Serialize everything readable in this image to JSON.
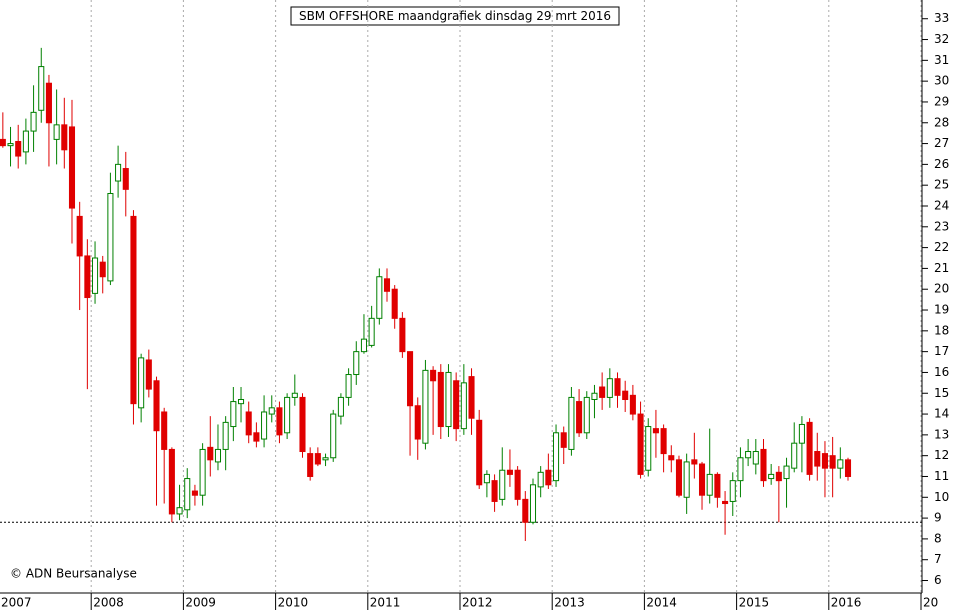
{
  "chart_data": {
    "type": "candlestick",
    "title": "SBM OFFSHORE maandgrafiek dinsdag 29 mrt 2016",
    "credit": "© ADN Beursanalyse",
    "categories": [
      null,
      null,
      null,
      null,
      null,
      null,
      null,
      null,
      null,
      null,
      null,
      null,
      null,
      null,
      null,
      null,
      null,
      null,
      null,
      null,
      null,
      null,
      null,
      null,
      null,
      null,
      null,
      null,
      null,
      null,
      null,
      null,
      null,
      null,
      null,
      null,
      null,
      null,
      null,
      null,
      null,
      null,
      null,
      null,
      null,
      null,
      null,
      null,
      null,
      null,
      null,
      null,
      null,
      null,
      null,
      null,
      null,
      null,
      null,
      null,
      null,
      null,
      null,
      null,
      null,
      null,
      null,
      null,
      null,
      null,
      null,
      null,
      null,
      null,
      null,
      null,
      null,
      null,
      null,
      null,
      null,
      null,
      null,
      null,
      null,
      null,
      null,
      null,
      null,
      null,
      null,
      null,
      null,
      null,
      null,
      null,
      null,
      null,
      null,
      null,
      null,
      null,
      null,
      null,
      null,
      null,
      null,
      null,
      null,
      null,
      null
    ],
    "open": [
      27.2,
      26.9,
      27.1,
      26.6,
      27.6,
      28.6,
      29.9,
      27.2,
      27.9,
      27.8,
      23.5,
      21.6,
      19.8,
      21.3,
      20.4,
      25.2,
      25.8,
      23.5,
      14.3,
      16.6,
      15.6,
      14.1,
      12.3,
      9.2,
      9.4,
      10.3,
      10.1,
      12.4,
      11.7,
      12.3,
      13.4,
      14.5,
      14.1,
      13.1,
      12.8,
      14.0,
      14.3,
      13.1,
      14.8,
      14.8,
      12.1,
      12.1,
      11.8,
      11.9,
      13.9,
      14.8,
      15.9,
      17.0,
      17.3,
      18.6,
      20.5,
      20.0,
      18.6,
      17.0,
      14.4,
      12.6,
      16.1,
      16.0,
      13.4,
      15.6,
      13.3,
      15.8,
      13.7,
      10.7,
      10.8,
      9.9,
      11.3,
      11.3,
      9.9,
      8.8,
      10.5,
      11.3,
      10.8,
      13.1,
      12.3,
      14.6,
      13.1,
      14.7,
      15.3,
      14.8,
      15.7,
      15.1,
      14.9,
      14.0,
      11.3,
      13.3,
      13.3,
      12.0,
      11.8,
      10.0,
      11.8,
      11.6,
      10.1,
      11.1,
      9.8,
      9.8,
      10.8,
      11.9,
      11.6,
      12.3,
      10.9,
      11.2,
      10.9,
      11.4,
      12.6,
      13.6,
      12.2,
      12.1,
      12.0,
      11.4,
      11.8
    ],
    "high": [
      28.5,
      27.8,
      27.9,
      28.2,
      29.8,
      31.6,
      30.3,
      29.6,
      29.2,
      29.1,
      24.2,
      22.4,
      22.3,
      21.6,
      25.6,
      26.9,
      26.6,
      23.8,
      16.9,
      17.1,
      15.8,
      14.3,
      12.4,
      10.6,
      11.4,
      10.6,
      12.6,
      13.9,
      13.5,
      13.9,
      15.3,
      15.3,
      14.6,
      13.6,
      14.9,
      14.9,
      14.6,
      15.0,
      15.9,
      15.0,
      12.4,
      12.4,
      12.1,
      14.2,
      15.0,
      16.2,
      17.5,
      18.8,
      19.2,
      21.0,
      21.0,
      20.2,
      18.9,
      17.0,
      14.8,
      16.6,
      16.3,
      16.4,
      16.4,
      16.0,
      16.4,
      16.2,
      14.2,
      11.3,
      11.1,
      12.4,
      12.3,
      11.5,
      10.3,
      10.9,
      11.5,
      12.1,
      13.5,
      13.4,
      15.3,
      15.2,
      15.1,
      15.4,
      16.0,
      16.2,
      16.0,
      15.6,
      15.4,
      14.6,
      13.8,
      14.2,
      13.5,
      12.5,
      12.0,
      12.1,
      13.1,
      11.7,
      13.3,
      11.2,
      10.3,
      11.2,
      12.4,
      12.8,
      12.8,
      12.8,
      11.6,
      11.5,
      11.9,
      13.6,
      13.9,
      13.8,
      13.1,
      12.7,
      12.9,
      12.4,
      11.9
    ],
    "low": [
      26.8,
      25.9,
      25.8,
      26.0,
      26.6,
      28.0,
      25.9,
      26.0,
      25.8,
      22.2,
      19.0,
      15.2,
      19.3,
      19.8,
      20.2,
      24.4,
      23.5,
      13.5,
      13.6,
      14.8,
      9.6,
      9.7,
      8.8,
      8.9,
      9.0,
      9.6,
      9.6,
      11.0,
      11.3,
      11.3,
      12.7,
      13.6,
      12.6,
      12.4,
      12.4,
      13.6,
      12.6,
      12.8,
      14.4,
      11.9,
      10.8,
      11.5,
      11.5,
      11.7,
      13.5,
      14.4,
      15.4,
      16.9,
      17.2,
      18.3,
      19.4,
      18.1,
      16.7,
      12.0,
      11.8,
      12.3,
      13.0,
      12.8,
      12.9,
      12.7,
      13.0,
      13.0,
      10.4,
      10.0,
      9.3,
      9.6,
      10.5,
      9.6,
      7.9,
      8.7,
      10.0,
      10.4,
      10.5,
      11.6,
      12.0,
      12.9,
      12.8,
      13.8,
      14.2,
      14.3,
      14.3,
      14.1,
      13.7,
      10.9,
      11.0,
      11.9,
      11.2,
      11.2,
      10.0,
      9.2,
      10.9,
      9.4,
      9.7,
      9.5,
      8.2,
      9.1,
      10.0,
      11.5,
      11.1,
      10.5,
      10.6,
      8.8,
      9.5,
      11.2,
      11.2,
      10.8,
      10.8,
      10.0,
      10.0,
      10.9,
      10.8
    ],
    "close": [
      26.9,
      27.0,
      26.4,
      27.6,
      28.5,
      30.7,
      28.0,
      27.9,
      26.7,
      23.9,
      21.6,
      19.6,
      21.5,
      20.6,
      24.6,
      26.0,
      24.8,
      14.5,
      16.7,
      15.2,
      13.2,
      12.3,
      9.2,
      9.5,
      10.9,
      10.1,
      12.3,
      11.8,
      12.3,
      13.6,
      14.6,
      14.7,
      13.0,
      12.7,
      14.1,
      14.3,
      13.0,
      14.8,
      15.0,
      12.2,
      11.0,
      11.6,
      11.9,
      14.0,
      14.8,
      15.9,
      17.0,
      17.6,
      18.6,
      20.6,
      19.9,
      18.6,
      17.0,
      14.4,
      12.8,
      16.1,
      15.6,
      13.4,
      16.0,
      13.3,
      15.5,
      13.8,
      10.6,
      11.1,
      9.8,
      11.3,
      11.1,
      9.9,
      8.8,
      10.6,
      11.2,
      10.6,
      13.1,
      12.4,
      14.8,
      13.1,
      14.8,
      15.0,
      14.8,
      15.7,
      14.9,
      14.7,
      14.0,
      11.1,
      13.4,
      13.1,
      12.1,
      11.8,
      10.1,
      11.7,
      11.6,
      10.1,
      11.1,
      10.0,
      9.7,
      10.8,
      11.9,
      12.2,
      12.2,
      10.8,
      11.1,
      10.8,
      11.5,
      12.6,
      13.5,
      11.1,
      11.5,
      11.4,
      11.4,
      11.8,
      11.0
    ],
    "up_color": "#008000",
    "down_color": "#e00000",
    "xlim": [
      0,
      120
    ],
    "xticks": [
      {
        "value": 0,
        "label": "2007"
      },
      {
        "value": 12,
        "label": "2008"
      },
      {
        "value": 24,
        "label": "2009"
      },
      {
        "value": 36,
        "label": "2010"
      },
      {
        "value": 48,
        "label": "2011"
      },
      {
        "value": 60,
        "label": "2012"
      },
      {
        "value": 72,
        "label": "2013"
      },
      {
        "value": 84,
        "label": "2014"
      },
      {
        "value": 96,
        "label": "2015"
      },
      {
        "value": 108,
        "label": "2016"
      },
      {
        "value": 120,
        "label": "20"
      }
    ],
    "ylim": [
      5.4,
      33.9
    ],
    "yticks": [
      6,
      7,
      8,
      9,
      10,
      11,
      12,
      13,
      14,
      15,
      16,
      17,
      18,
      19,
      20,
      21,
      22,
      23,
      24,
      25,
      26,
      27,
      28,
      29,
      30,
      31,
      32,
      33
    ],
    "hline": 8.8,
    "grid": true
  }
}
